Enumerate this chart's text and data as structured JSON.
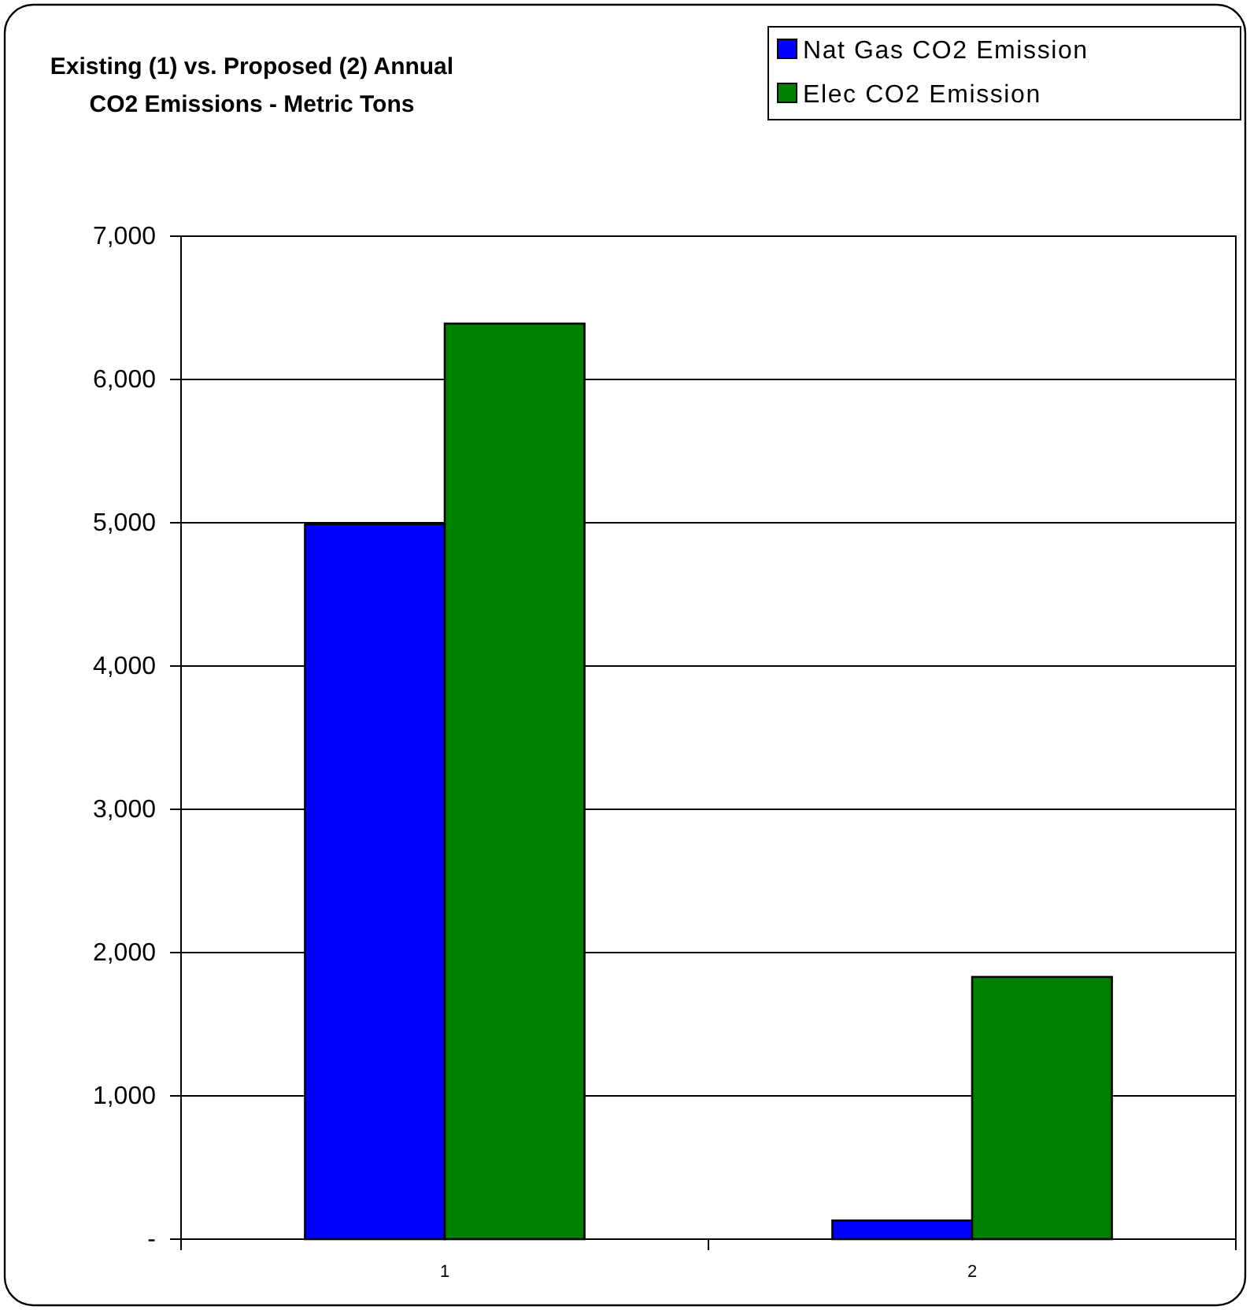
{
  "chart_data": {
    "type": "bar",
    "title": "Existing (1) vs. Proposed (2) Annual CO2 Emissions - Metric Tons",
    "categories": [
      "1",
      "2"
    ],
    "series": [
      {
        "name": "Nat Gas CO2 Emission",
        "color": "#0000ff",
        "values": [
          4990,
          130
        ]
      },
      {
        "name": "Elec CO2 Emission",
        "color": "#008000",
        "values": [
          6390,
          1830
        ]
      }
    ],
    "ylim": [
      0,
      7000
    ],
    "yticks": [
      {
        "value": 0,
        "label": "-"
      },
      {
        "value": 1000,
        "label": "1,000"
      },
      {
        "value": 2000,
        "label": "2,000"
      },
      {
        "value": 3000,
        "label": "3,000"
      },
      {
        "value": 4000,
        "label": "4,000"
      },
      {
        "value": 5000,
        "label": "5,000"
      },
      {
        "value": 6000,
        "label": "6,000"
      },
      {
        "value": 7000,
        "label": "7,000"
      }
    ],
    "grid": "y",
    "legend": "top right"
  }
}
